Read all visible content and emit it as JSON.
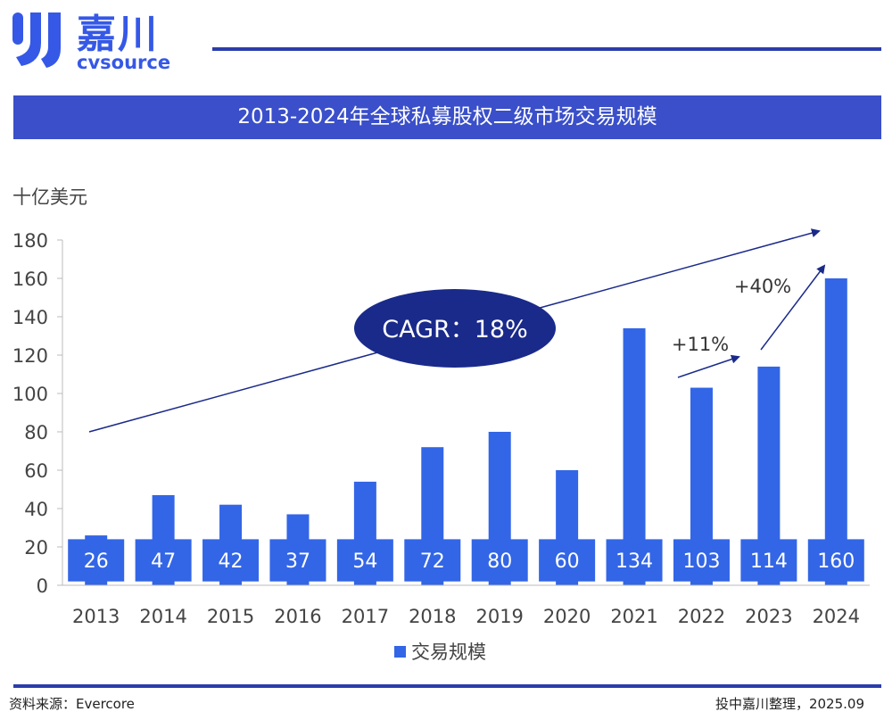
{
  "brand": {
    "name_cn": "嘉川",
    "name_en": "cvsource",
    "accent": "#3558e6",
    "rule_color": "#2b3dab",
    "title_bg": "#3a4fc9"
  },
  "footer": {
    "source": "资料来源：Evercore",
    "credit": "投中嘉川整理，2025.09"
  },
  "chart_data": {
    "type": "bar",
    "title": "2013-2024年全球私募股权二级市场交易规模",
    "ylabel": "十亿美元",
    "xlabel": "",
    "ylim": [
      0,
      180
    ],
    "yticks": [
      0,
      20,
      40,
      60,
      80,
      100,
      120,
      140,
      160,
      180
    ],
    "categories": [
      "2013",
      "2014",
      "2015",
      "2016",
      "2017",
      "2018",
      "2019",
      "2020",
      "2021",
      "2022",
      "2023",
      "2024"
    ],
    "series": [
      {
        "name": "交易规模",
        "color": "#3366e6",
        "values": [
          26,
          47,
          42,
          37,
          54,
          72,
          80,
          60,
          134,
          103,
          114,
          160
        ]
      }
    ],
    "data_labels": [
      "26",
      "47",
      "42",
      "37",
      "54",
      "72",
      "80",
      "60",
      "134",
      "103",
      "114",
      "160"
    ],
    "legend": "bottom-center",
    "grid": false,
    "annotations": {
      "cagr": "CAGR：18%",
      "growth_2023": "+11%",
      "growth_2024": "+40%"
    }
  }
}
